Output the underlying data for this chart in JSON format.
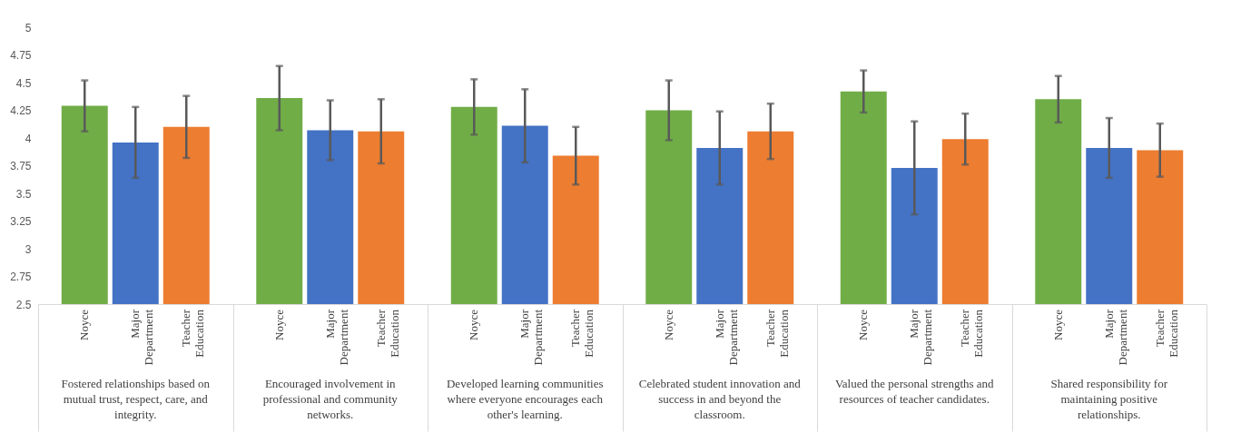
{
  "chart_data": {
    "type": "bar",
    "categories": [
      "Fostered relationships based on mutual trust, respect, care, and integrity.",
      "Encouraged involvement in professional and community networks.",
      "Developed learning communities where everyone encourages each other's learning.",
      "Celebrated student innovation and success in and beyond the classroom.",
      "Valued the personal strengths and resources of teacher candidates.",
      "Shared responsibility for maintaining positive relationships."
    ],
    "series": [
      {
        "name": "Noyce",
        "color": "#70ad47",
        "values": [
          4.29,
          4.36,
          4.28,
          4.25,
          4.42,
          4.35
        ],
        "errors": [
          0.23,
          0.29,
          0.25,
          0.27,
          0.19,
          0.21
        ]
      },
      {
        "name": "Major Department",
        "color": "#4472c4",
        "values": [
          3.96,
          4.07,
          4.11,
          3.91,
          3.73,
          3.91
        ],
        "errors": [
          0.32,
          0.27,
          0.33,
          0.33,
          0.42,
          0.27
        ]
      },
      {
        "name": "Teacher Education",
        "color": "#ed7d31",
        "values": [
          4.1,
          4.06,
          3.84,
          4.06,
          3.99,
          3.89
        ],
        "errors": [
          0.28,
          0.29,
          0.26,
          0.25,
          0.23,
          0.24
        ]
      }
    ],
    "ylim": [
      2.5,
      5
    ],
    "yticks": [
      2.5,
      2.75,
      3,
      3.25,
      3.5,
      3.75,
      4,
      4.25,
      4.5,
      4.75,
      5
    ],
    "grid": false
  }
}
